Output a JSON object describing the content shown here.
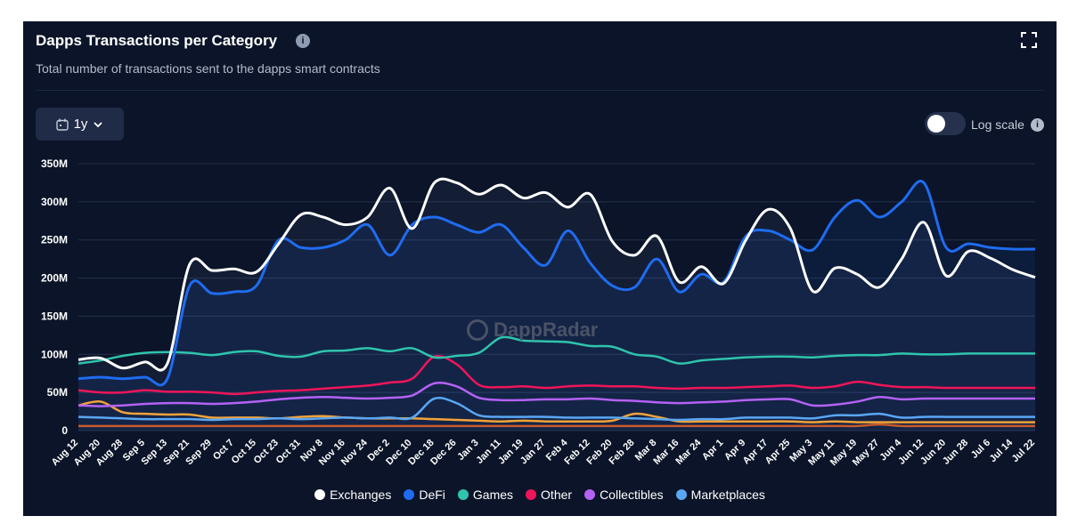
{
  "header": {
    "title": "Dapps Transactions per Category",
    "info_icon": "i",
    "subtitle": "Total number of transactions sent to the dapps smart contracts"
  },
  "controls": {
    "range_label": "1y",
    "log_scale_label": "Log scale",
    "log_scale_on": false,
    "info_icon": "i"
  },
  "watermark": "DappRadar",
  "colors": {
    "background": "#0b1428",
    "grid": "#24304b",
    "Exchanges": "#ffffff",
    "DeFi": "#1f6cf0",
    "Games": "#2fc4ad",
    "Other": "#f0155a",
    "Collectibles": "#b462f5",
    "Marketplaces": "#5aa7f5",
    "Other-orange": "#f2a33a",
    "Other-brown": "#c65b2c"
  },
  "chart_data": {
    "type": "line",
    "title": "Dapps Transactions per Category",
    "y_tick_labels": [
      "0",
      "50M",
      "100M",
      "150M",
      "200M",
      "250M",
      "300M",
      "350M"
    ],
    "ylim": [
      0,
      350
    ],
    "yunit": "M",
    "categories": [
      "Aug 12",
      "Aug 20",
      "Aug 28",
      "Sep 5",
      "Sep 13",
      "Sep 21",
      "Sep 29",
      "Oct 7",
      "Oct 15",
      "Oct 23",
      "Oct 31",
      "Nov 8",
      "Nov 16",
      "Nov 24",
      "Dec 2",
      "Dec 10",
      "Dec 18",
      "Dec 26",
      "Jan 3",
      "Jan 11",
      "Jan 19",
      "Jan 27",
      "Feb 4",
      "Feb 12",
      "Feb 20",
      "Feb 28",
      "Mar 8",
      "Mar 16",
      "Mar 24",
      "Apr 1",
      "Apr 9",
      "Apr 17",
      "Apr 25",
      "May 3",
      "May 11",
      "May 19",
      "May 27",
      "Jun 4",
      "Jun 12",
      "Jun 20",
      "Jun 28",
      "Jul 6",
      "Jul 14",
      "Jul 22"
    ],
    "series": [
      {
        "name": "Exchanges",
        "legend": true,
        "values": [
          93,
          95,
          82,
          90,
          88,
          218,
          210,
          212,
          208,
          245,
          283,
          280,
          270,
          280,
          318,
          265,
          325,
          325,
          310,
          322,
          305,
          312,
          293,
          310,
          248,
          230,
          255,
          195,
          215,
          193,
          250,
          290,
          265,
          183,
          213,
          205,
          188,
          225,
          273,
          203,
          235,
          226,
          211,
          201
        ]
      },
      {
        "name": "DeFi",
        "legend": true,
        "values": [
          68,
          70,
          68,
          70,
          68,
          190,
          180,
          182,
          190,
          250,
          240,
          240,
          250,
          270,
          230,
          270,
          280,
          270,
          260,
          270,
          240,
          217,
          262,
          220,
          190,
          188,
          225,
          182,
          205,
          195,
          255,
          262,
          250,
          237,
          280,
          302,
          280,
          300,
          325,
          240,
          245,
          240,
          238,
          238
        ]
      },
      {
        "name": "Games",
        "legend": true,
        "values": [
          88,
          92,
          98,
          102,
          103,
          102,
          99,
          103,
          104,
          98,
          97,
          104,
          105,
          108,
          104,
          108,
          96,
          98,
          102,
          122,
          118,
          117,
          116,
          111,
          110,
          100,
          97,
          88,
          92,
          94,
          96,
          97,
          97,
          96,
          98,
          99,
          99,
          101,
          100,
          100,
          101,
          101,
          101,
          101
        ]
      },
      {
        "name": "Other",
        "legend": true,
        "values": [
          53,
          50,
          50,
          53,
          51,
          51,
          50,
          48,
          50,
          52,
          53,
          55,
          57,
          59,
          63,
          68,
          97,
          87,
          60,
          57,
          58,
          56,
          58,
          59,
          58,
          58,
          56,
          55,
          56,
          56,
          57,
          58,
          59,
          56,
          58,
          64,
          60,
          57,
          57,
          56,
          56,
          56,
          56,
          56
        ]
      },
      {
        "name": "Collectibles",
        "legend": true,
        "values": [
          33,
          32,
          33,
          35,
          36,
          36,
          35,
          36,
          38,
          41,
          43,
          44,
          43,
          42,
          43,
          46,
          62,
          58,
          43,
          40,
          40,
          41,
          41,
          42,
          40,
          39,
          37,
          36,
          37,
          38,
          40,
          41,
          41,
          33,
          34,
          38,
          44,
          41,
          42,
          42,
          42,
          42,
          42,
          42
        ]
      },
      {
        "name": "Marketplaces",
        "legend": true,
        "values": [
          18,
          17,
          16,
          15,
          15,
          15,
          14,
          15,
          15,
          16,
          15,
          16,
          17,
          16,
          17,
          17,
          42,
          36,
          20,
          18,
          18,
          18,
          17,
          17,
          17,
          16,
          15,
          14,
          15,
          15,
          17,
          17,
          17,
          16,
          20,
          20,
          22,
          17,
          18,
          18,
          18,
          18,
          18,
          18
        ]
      },
      {
        "name": "Orange series",
        "legend": false,
        "values": [
          33,
          38,
          24,
          22,
          21,
          21,
          17,
          17,
          17,
          16,
          18,
          19,
          17,
          16,
          16,
          16,
          15,
          14,
          13,
          12,
          13,
          12,
          12,
          12,
          13,
          22,
          18,
          12,
          12,
          12,
          12,
          12,
          12,
          11,
          12,
          11,
          11,
          11,
          11,
          11,
          11,
          11,
          11,
          11
        ]
      },
      {
        "name": "Brown series",
        "legend": false,
        "values": [
          6,
          6,
          6,
          6,
          6,
          6,
          6,
          6,
          6,
          6,
          6,
          6,
          6,
          6,
          6,
          6,
          6,
          6,
          6,
          6,
          6,
          6,
          6,
          6,
          6,
          6,
          6,
          6,
          6,
          6,
          6,
          6,
          6,
          6,
          6,
          6,
          8,
          6,
          6,
          6,
          6,
          6,
          6,
          6
        ]
      }
    ]
  }
}
